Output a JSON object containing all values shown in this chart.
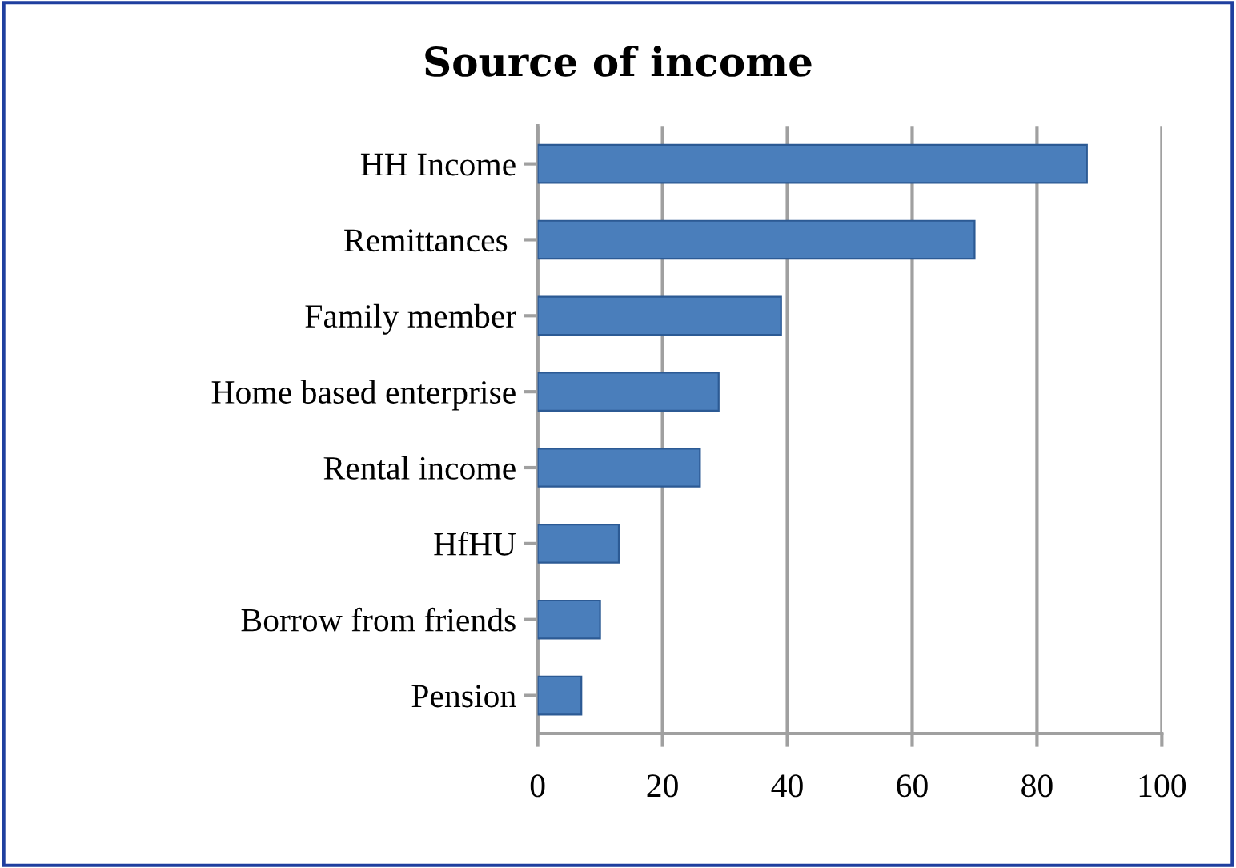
{
  "chart_data": {
    "type": "bar",
    "orientation": "horizontal",
    "title": "Source of income",
    "categories": [
      "HH Income",
      "Remittances ",
      "Family member",
      "Home based enterprise",
      "Rental income",
      "HfHU",
      "Borrow from friends",
      "Pension"
    ],
    "values": [
      88,
      70,
      39,
      29,
      26,
      13,
      10,
      7
    ],
    "color": "#4a7ebb",
    "xlim": [
      0,
      100
    ],
    "xticks": [
      0,
      20,
      40,
      60,
      80,
      100
    ],
    "grid": "x",
    "legend": false
  }
}
